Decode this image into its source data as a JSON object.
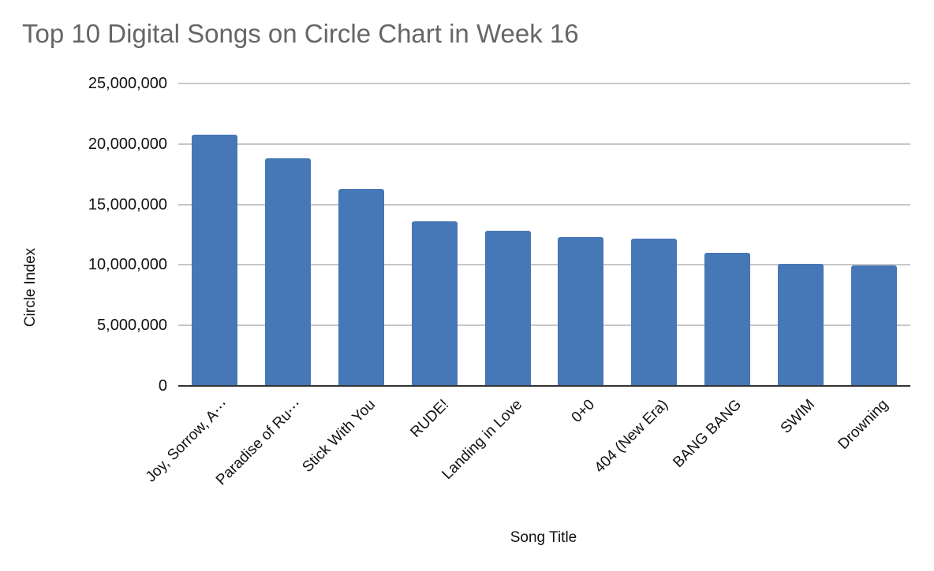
{
  "chart_data": {
    "type": "bar",
    "title": "Top 10 Digital Songs on Circle Chart in Week 16",
    "xlabel": "Song Title",
    "ylabel": "Circle Index",
    "ylim": [
      0,
      25000000
    ],
    "yticks": [
      "0",
      "5,000,000",
      "10,000,000",
      "15,000,000",
      "20,000,000",
      "25,000,000"
    ],
    "grid": true,
    "legend": "none",
    "bar_color": "#4677b6",
    "categories": [
      "Joy, Sorrow, A⋯",
      "Paradise of Ru⋯",
      "Stick With You",
      "RUDE!",
      "Landing in Love",
      "0+0",
      "404 (New Era)",
      "BANG BANG",
      "SWIM",
      "Drowning"
    ],
    "values": [
      20770000,
      18800000,
      16300000,
      13600000,
      12800000,
      12300000,
      12200000,
      11000000,
      10100000,
      9960000
    ]
  }
}
